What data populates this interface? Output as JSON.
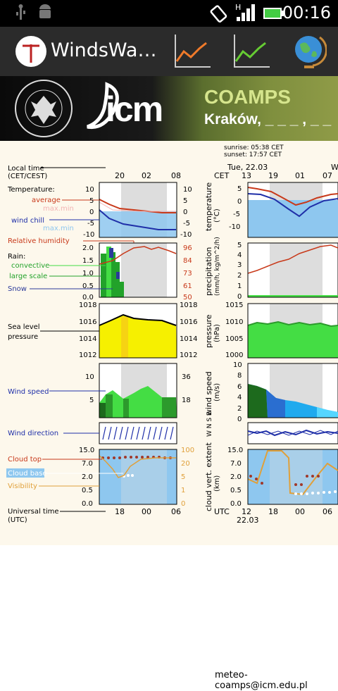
{
  "status_bar": {
    "time": "00:16"
  },
  "action_bar": {
    "app_title": "WindsWa…"
  },
  "banner": {
    "coamps": "COAMPS",
    "city": "Kraków, _ _ _ , _ _ _"
  },
  "left": {
    "local_time_label": "Local time",
    "cet_cest": "(CET/CEST)",
    "local_ticks": [
      "20",
      "02",
      "08"
    ],
    "temperature": "Temperature:",
    "average": "average",
    "maxmin": "max.min",
    "wind_chill": "wind chill",
    "maxmin2": "max.min",
    "temp_axis": [
      "10",
      "5",
      "0",
      "-5",
      "-10"
    ],
    "relative_humidity": "Relative humidity",
    "rain": "Rain:",
    "convective": "convective",
    "large_scale": "large scale",
    "snow": "Snow",
    "rain_axis": [
      "2.0",
      "1.5",
      "1.0",
      "0.5",
      "0.0"
    ],
    "rh_axis": [
      "96",
      "84",
      "73",
      "61",
      "50"
    ],
    "pressure_axis": [
      "1018",
      "1016",
      "1014",
      "1012"
    ],
    "sea_level": "Sea level",
    "pressure": "pressure",
    "wind_speed": "Wind speed",
    "wind_axis_left": [
      "10",
      "5"
    ],
    "wind_axis_right": [
      "36",
      "18"
    ],
    "wind_direction": "Wind direction",
    "cloud_top": "Cloud top",
    "cloud_base": "Cloud base",
    "visibility": "Visibility",
    "cloud_axis": [
      "15.0",
      "7.0",
      "2.0",
      "0.5",
      "0.0"
    ],
    "vis_axis": [
      "100",
      "20",
      "5",
      "1",
      "0"
    ],
    "universal_time": "Universal time",
    "utc": "(UTC)",
    "utc_ticks": [
      "18",
      "00",
      "06"
    ]
  },
  "right": {
    "sunrise": "sunrise: 05:38 CET",
    "sunset": "sunset: 17:57 CET",
    "date_top": "Tue, 22.03",
    "w": "W",
    "cet": "CET",
    "cet_ticks": [
      "13",
      "19",
      "01",
      "07"
    ],
    "temp_label": "temperature",
    "temp_unit": "(°C)",
    "temp_axis": [
      "5",
      "0",
      "-5",
      "-10"
    ],
    "precip_label": "precipitation",
    "precip_unit": "(mm/h, kg/m^2/h)",
    "precip_axis": [
      "5",
      "4",
      "3",
      "2",
      "1",
      "0"
    ],
    "pressure_label": "pressure",
    "pressure_unit": "(hPa)",
    "pressure_axis": [
      "1015",
      "1010",
      "1005",
      "1000"
    ],
    "wind_label": "wind speed",
    "wind_unit": "(m/s)",
    "wind_axis": [
      "10",
      "8",
      "6",
      "4",
      "2",
      "0"
    ],
    "compass": "W N S E",
    "cloud_label": "cloud vert. extent",
    "cloud_unit": "(km)",
    "cloud_axis": [
      "15.0",
      "7.0",
      "2.0",
      "0.5",
      "0.0"
    ],
    "utc": "UTC",
    "utc_ticks": [
      "12",
      "18",
      "00",
      "06"
    ],
    "date_bottom": "22.03"
  },
  "footer": {
    "email": "meteo-coamps@icm.edu.pl"
  }
}
